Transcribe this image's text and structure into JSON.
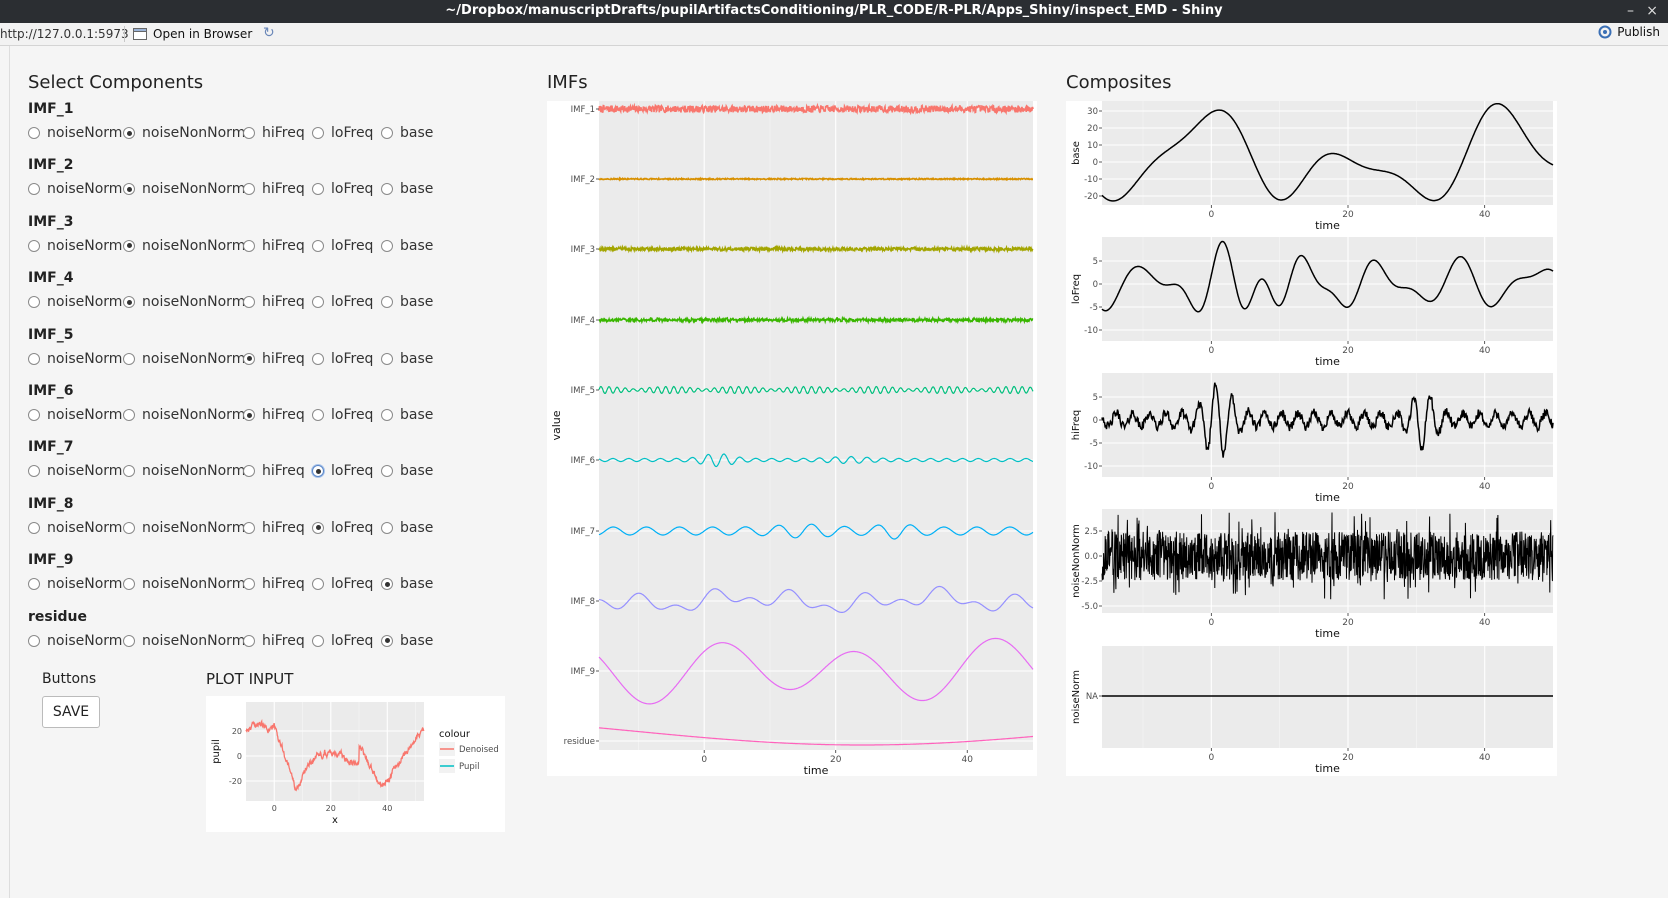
{
  "window": {
    "title": "~/Dropbox/manuscriptDrafts/pupilArtifactsConditioning/PLR_CODE/R-PLR/Apps_Shiny/inspect_EMD - Shiny",
    "minimize": "–",
    "maximize": "▫",
    "close": "×"
  },
  "toolbar": {
    "url": "http://127.0.0.1:5973",
    "open_in_browser": "Open in Browser",
    "refresh": "↻",
    "publish": "Publish"
  },
  "select_components": {
    "title": "Select Components",
    "options": [
      "noiseNorm",
      "noiseNonNorm",
      "hiFreq",
      "loFreq",
      "base"
    ],
    "groups": [
      {
        "label": "IMF_1",
        "selected": "noiseNonNorm"
      },
      {
        "label": "IMF_2",
        "selected": "noiseNonNorm"
      },
      {
        "label": "IMF_3",
        "selected": "noiseNonNorm"
      },
      {
        "label": "IMF_4",
        "selected": "noiseNonNorm"
      },
      {
        "label": "IMF_5",
        "selected": "hiFreq"
      },
      {
        "label": "IMF_6",
        "selected": "hiFreq"
      },
      {
        "label": "IMF_7",
        "selected": "loFreq"
      },
      {
        "label": "IMF_8",
        "selected": "loFreq"
      },
      {
        "label": "IMF_9",
        "selected": "base"
      },
      {
        "label": "residue",
        "selected": "base"
      }
    ]
  },
  "buttons": {
    "title": "Buttons",
    "save": "SAVE"
  },
  "plot_input": {
    "title": "PLOT INPUT",
    "legend_title": "colour",
    "legend": [
      {
        "name": "Denoised",
        "color": "#f8766d"
      },
      {
        "name": "Pupil",
        "color": "#00bfc4"
      }
    ],
    "xlabel": "x",
    "ylabel": "pupil",
    "xticks": [
      "0",
      "20",
      "40"
    ],
    "yticks": [
      "20",
      "0",
      "-20"
    ]
  },
  "imfs": {
    "title": "IMFs",
    "xlabel": "time",
    "ylabel": "value",
    "xticks": [
      "0",
      "20",
      "40"
    ],
    "series": [
      {
        "name": "IMF_1",
        "color": "#f8766d"
      },
      {
        "name": "IMF_2",
        "color": "#d89000"
      },
      {
        "name": "IMF_3",
        "color": "#a3a500"
      },
      {
        "name": "IMF_4",
        "color": "#39b600"
      },
      {
        "name": "IMF_5",
        "color": "#00bf7d"
      },
      {
        "name": "IMF_6",
        "color": "#00bfc4"
      },
      {
        "name": "IMF_7",
        "color": "#00b0f6"
      },
      {
        "name": "IMF_8",
        "color": "#9590ff"
      },
      {
        "name": "IMF_9",
        "color": "#e76bf3"
      },
      {
        "name": "residue",
        "color": "#ff62bc"
      }
    ]
  },
  "composites": {
    "title": "Composites",
    "panels": [
      {
        "ylabel": "base",
        "xlabel": "time",
        "yticks": [
          "30",
          "20",
          "10",
          "0",
          "-10",
          "-20"
        ],
        "xticks": [
          "0",
          "20",
          "40"
        ]
      },
      {
        "ylabel": "loFreq",
        "xlabel": "time",
        "yticks": [
          "5",
          "0",
          "-5",
          "-10"
        ],
        "xticks": [
          "0",
          "20",
          "40"
        ]
      },
      {
        "ylabel": "hiFreq",
        "xlabel": "time",
        "yticks": [
          "5",
          "0",
          "-5",
          "-10"
        ],
        "xticks": [
          "0",
          "20",
          "40"
        ]
      },
      {
        "ylabel": "noiseNonNorm",
        "xlabel": "time",
        "yticks": [
          "2.5",
          "0.0",
          "-2.5",
          "-5.0"
        ],
        "xticks": [
          "0",
          "20",
          "40"
        ]
      },
      {
        "ylabel": "noiseNorm",
        "xlabel": "time",
        "yticks": [
          "NA"
        ],
        "xticks": [
          "0",
          "20",
          "40"
        ]
      }
    ]
  }
}
